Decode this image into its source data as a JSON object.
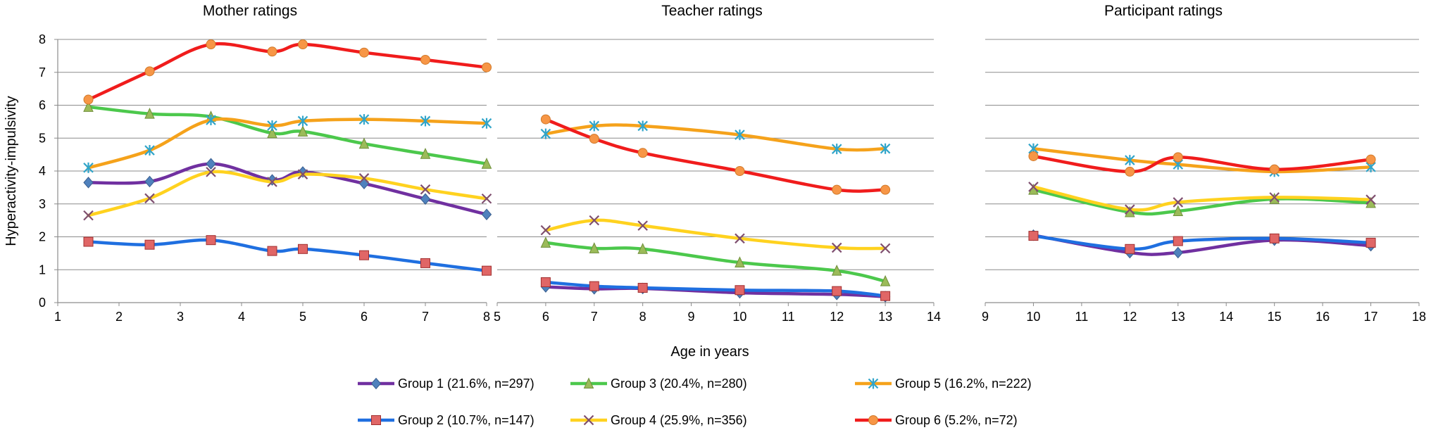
{
  "chart_data": {
    "type": "line",
    "ylabel": "Hyperactivity-impulsivity",
    "xlabel": "Age in years",
    "ylim": [
      0,
      8
    ],
    "y_ticks": [
      "0",
      "1",
      "2",
      "3",
      "4",
      "5",
      "6",
      "7",
      "8"
    ],
    "grid": "horizontal",
    "legend_placement": "bottom",
    "series_meta": [
      {
        "name": "Group 1 (21.6%, n=297)",
        "color": "#7030A0",
        "marker": "diamond",
        "marker_color": "#4F81BD"
      },
      {
        "name": "Group 2 (10.7%, n=147)",
        "color": "#1F6FE0",
        "marker": "square",
        "marker_color": "#E06666"
      },
      {
        "name": "Group 3 (20.4%, n=280)",
        "color": "#4CC84C",
        "marker": "triangle",
        "marker_color": "#9BBB59"
      },
      {
        "name": "Group 4 (25.9%, n=356)",
        "color": "#FFD21F",
        "marker": "x",
        "marker_color": "#7F4F6F"
      },
      {
        "name": "Group 5 (16.2%, n=222)",
        "color": "#F5A21B",
        "marker": "star",
        "marker_color": "#31A5C9"
      },
      {
        "name": "Group 6 (5.2%, n=72)",
        "color": "#F01C1C",
        "marker": "circle",
        "marker_color": "#F79646"
      }
    ],
    "panels": [
      {
        "title": "Mother ratings",
        "xlim": [
          1,
          8
        ],
        "x_ticks": [
          "1",
          "2",
          "3",
          "4",
          "5",
          "6",
          "7",
          "8"
        ],
        "x": [
          1.5,
          2.5,
          3.5,
          4.5,
          5,
          6,
          7,
          8
        ],
        "series": [
          {
            "values": [
              3.65,
              3.68,
              4.22,
              3.73,
              3.97,
              3.62,
              3.15,
              2.68
            ]
          },
          {
            "values": [
              1.85,
              1.76,
              1.9,
              1.57,
              1.63,
              1.44,
              1.2,
              0.97
            ]
          },
          {
            "values": [
              5.95,
              5.74,
              5.65,
              5.15,
              5.2,
              4.83,
              4.52,
              4.22
            ]
          },
          {
            "values": [
              2.65,
              3.17,
              3.97,
              3.67,
              3.9,
              3.78,
              3.44,
              3.16
            ]
          },
          {
            "values": [
              4.1,
              4.63,
              5.55,
              5.38,
              5.52,
              5.57,
              5.52,
              5.45
            ]
          },
          {
            "values": [
              6.17,
              7.03,
              7.85,
              7.63,
              7.85,
              7.6,
              7.38,
              7.15
            ]
          }
        ]
      },
      {
        "title": "Teacher ratings",
        "xlim": [
          5,
          14
        ],
        "x_ticks": [
          "5",
          "6",
          "7",
          "8",
          "9",
          "10",
          "11",
          "12",
          "13",
          "14"
        ],
        "x": [
          6,
          7,
          8,
          10,
          12,
          13
        ],
        "series": [
          {
            "values": [
              0.48,
              0.42,
              0.43,
              0.3,
              0.25,
              0.18
            ]
          },
          {
            "values": [
              0.62,
              0.5,
              0.45,
              0.38,
              0.35,
              0.2
            ]
          },
          {
            "values": [
              1.82,
              1.65,
              1.63,
              1.22,
              0.97,
              0.65
            ]
          },
          {
            "values": [
              2.2,
              2.5,
              2.34,
              1.95,
              1.67,
              1.65
            ]
          },
          {
            "values": [
              5.13,
              5.37,
              5.37,
              5.1,
              4.67,
              4.68
            ]
          },
          {
            "values": [
              5.57,
              4.98,
              4.55,
              4.0,
              3.43,
              3.43
            ]
          }
        ]
      },
      {
        "title": "Participant ratings",
        "xlim": [
          9,
          18
        ],
        "x_ticks": [
          "9",
          "10",
          "11",
          "12",
          "13",
          "14",
          "15",
          "16",
          "17",
          "18"
        ],
        "x": [
          10,
          12,
          13,
          15,
          17
        ],
        "series": [
          {
            "values": [
              2.05,
              1.52,
              1.52,
              1.9,
              1.73
            ]
          },
          {
            "values": [
              2.03,
              1.63,
              1.87,
              1.95,
              1.82
            ]
          },
          {
            "values": [
              3.43,
              2.75,
              2.78,
              3.15,
              3.03
            ]
          },
          {
            "values": [
              3.52,
              2.83,
              3.05,
              3.2,
              3.13
            ]
          },
          {
            "values": [
              4.68,
              4.33,
              4.2,
              3.98,
              4.12
            ]
          },
          {
            "values": [
              4.45,
              3.98,
              4.42,
              4.05,
              4.35
            ]
          }
        ]
      }
    ]
  }
}
